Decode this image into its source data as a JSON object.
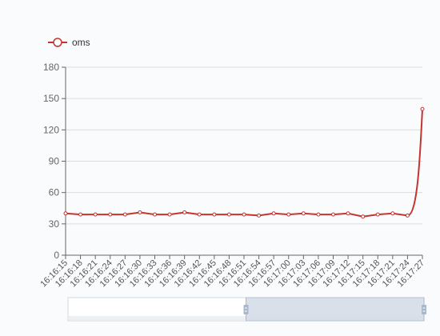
{
  "chart_data": {
    "type": "line",
    "title": "",
    "xlabel": "",
    "ylabel": "",
    "ylim": [
      0,
      180
    ],
    "yticks": [
      0,
      30,
      60,
      90,
      120,
      150,
      180
    ],
    "grid": true,
    "legend_position": "top-left",
    "categories": [
      "16:16:15",
      "16:16:18",
      "16:16:21",
      "16:16:24",
      "16:16:27",
      "16:16:30",
      "16:16:33",
      "16:16:36",
      "16:16:39",
      "16:16:42",
      "16:16:45",
      "16:16:48",
      "16:16:51",
      "16:16:54",
      "16:16:57",
      "16:17:00",
      "16:17:03",
      "16:17:06",
      "16:17:09",
      "16:17:12",
      "16:17:15",
      "16:17:18",
      "16:17:21",
      "16:17:24",
      "16:17:27"
    ],
    "series": [
      {
        "name": "oms",
        "color": "#c23531",
        "values": [
          40,
          39,
          39,
          39,
          39,
          41,
          39,
          39,
          41,
          39,
          39,
          39,
          39,
          38,
          40,
          39,
          40,
          39,
          39,
          40,
          37,
          39,
          40,
          38,
          140
        ]
      }
    ]
  },
  "data_zoom": {
    "start_percent": 50,
    "end_percent": 100,
    "fill_color": "#d3dbe6",
    "handle_color": "#a7b7cc"
  }
}
